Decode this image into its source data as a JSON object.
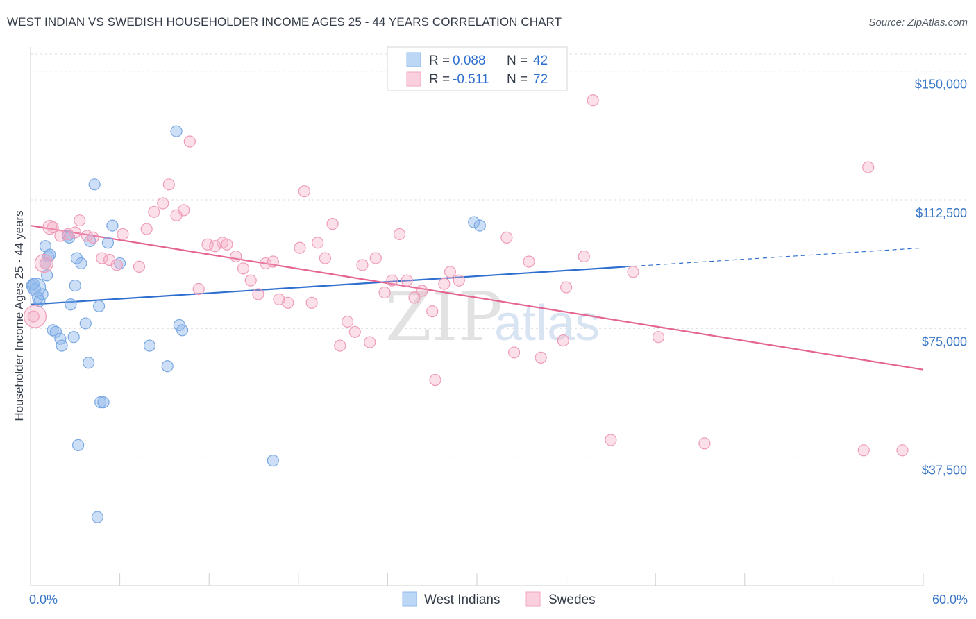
{
  "title": "WEST INDIAN VS SWEDISH HOUSEHOLDER INCOME AGES 25 - 44 YEARS CORRELATION CHART",
  "source": "Source: ZipAtlas.com",
  "chart_data": {
    "type": "scatter",
    "ylabel": "Householder Income Ages 25 - 44 years",
    "xlim": [
      0,
      60
    ],
    "ylim": [
      0,
      155000
    ],
    "y_ticks": [
      {
        "value": 37500,
        "label": "$37,500"
      },
      {
        "value": 75000,
        "label": "$75,000"
      },
      {
        "value": 112500,
        "label": "$112,500"
      },
      {
        "value": 150000,
        "label": "$150,000"
      }
    ],
    "x_tick_labels": {
      "min": "0.0%",
      "max": "60.0%"
    },
    "grid": true,
    "legend_position": "top-center",
    "colors": {
      "west_indians": "#8fb8ec",
      "swedes": "#f3a6bf",
      "west_indians_line": "#2f6fcf",
      "swedes_line": "#e46592",
      "tick_text": "#3b78c8"
    },
    "legend": [
      {
        "r_label": "R = ",
        "r_value": "0.088",
        "n_label": "N = ",
        "n_value": "42"
      },
      {
        "r_label": "R = ",
        "r_value": "-0.511",
        "n_label": "N = ",
        "n_value": "72"
      }
    ],
    "series": [
      {
        "name": "West Indians",
        "trend": {
          "x0": 0,
          "y0": 82000,
          "x1": 60,
          "y1": 98500,
          "solid_until_x": 40
        },
        "points": [
          [
            0.1,
            87500
          ],
          [
            0.3,
            86500
          ],
          [
            0.5,
            84000
          ],
          [
            0.6,
            83000
          ],
          [
            0.8,
            85000
          ],
          [
            1.0,
            99000
          ],
          [
            1.1,
            90500
          ],
          [
            1.2,
            96000
          ],
          [
            1.0,
            94000
          ],
          [
            1.5,
            74500
          ],
          [
            1.7,
            74000
          ],
          [
            2.0,
            72000
          ],
          [
            2.1,
            70000
          ],
          [
            2.5,
            102000
          ],
          [
            2.6,
            101500
          ],
          [
            2.7,
            82000
          ],
          [
            2.9,
            72500
          ],
          [
            3.0,
            87500
          ],
          [
            3.1,
            95500
          ],
          [
            3.4,
            94000
          ],
          [
            3.7,
            76500
          ],
          [
            3.9,
            65000
          ],
          [
            4.0,
            100500
          ],
          [
            4.3,
            117000
          ],
          [
            4.6,
            81500
          ],
          [
            4.7,
            53500
          ],
          [
            4.9,
            53500
          ],
          [
            5.2,
            100000
          ],
          [
            5.5,
            105000
          ],
          [
            6.0,
            94000
          ],
          [
            8.0,
            70000
          ],
          [
            9.2,
            64000
          ],
          [
            9.8,
            132500
          ],
          [
            10.0,
            76000
          ],
          [
            10.2,
            74500
          ],
          [
            16.3,
            36500
          ],
          [
            29.8,
            106000
          ],
          [
            30.2,
            105000
          ],
          [
            4.5,
            20000
          ],
          [
            3.2,
            41000
          ],
          [
            0.2,
            88000
          ],
          [
            1.3,
            96500
          ]
        ]
      },
      {
        "name": "Swedes",
        "trend": {
          "x0": 0,
          "y0": 105000,
          "x1": 60,
          "y1": 63000
        },
        "points": [
          [
            0.2,
            78500
          ],
          [
            1.0,
            94000
          ],
          [
            1.5,
            104500
          ],
          [
            2.0,
            102000
          ],
          [
            2.5,
            102500
          ],
          [
            3.0,
            103000
          ],
          [
            3.3,
            106500
          ],
          [
            3.8,
            102000
          ],
          [
            4.2,
            101500
          ],
          [
            4.8,
            95500
          ],
          [
            5.3,
            95000
          ],
          [
            5.8,
            93500
          ],
          [
            6.2,
            102500
          ],
          [
            7.3,
            93000
          ],
          [
            7.8,
            104000
          ],
          [
            8.3,
            109000
          ],
          [
            8.9,
            111500
          ],
          [
            9.3,
            117000
          ],
          [
            9.8,
            108000
          ],
          [
            10.3,
            109500
          ],
          [
            10.7,
            129500
          ],
          [
            11.3,
            86500
          ],
          [
            11.9,
            99500
          ],
          [
            12.4,
            99000
          ],
          [
            12.9,
            100000
          ],
          [
            13.2,
            99500
          ],
          [
            13.8,
            96000
          ],
          [
            14.3,
            92500
          ],
          [
            14.8,
            89000
          ],
          [
            15.3,
            85000
          ],
          [
            15.8,
            94000
          ],
          [
            16.3,
            94500
          ],
          [
            16.7,
            83500
          ],
          [
            17.3,
            82500
          ],
          [
            18.1,
            98500
          ],
          [
            18.4,
            115000
          ],
          [
            18.9,
            82500
          ],
          [
            19.3,
            100000
          ],
          [
            19.8,
            95500
          ],
          [
            20.3,
            105500
          ],
          [
            20.8,
            70000
          ],
          [
            21.3,
            77000
          ],
          [
            21.8,
            74000
          ],
          [
            22.3,
            93500
          ],
          [
            22.8,
            71000
          ],
          [
            23.2,
            95500
          ],
          [
            23.8,
            85500
          ],
          [
            24.3,
            89000
          ],
          [
            24.8,
            102500
          ],
          [
            25.3,
            89000
          ],
          [
            25.8,
            84000
          ],
          [
            26.3,
            86000
          ],
          [
            27.0,
            80000
          ],
          [
            27.2,
            60000
          ],
          [
            27.8,
            88000
          ],
          [
            28.2,
            91500
          ],
          [
            28.8,
            89000
          ],
          [
            32.0,
            101500
          ],
          [
            32.5,
            68000
          ],
          [
            33.5,
            94500
          ],
          [
            34.3,
            66500
          ],
          [
            35.8,
            71500
          ],
          [
            36.0,
            87000
          ],
          [
            37.2,
            96000
          ],
          [
            37.8,
            141500
          ],
          [
            39.0,
            42500
          ],
          [
            40.5,
            91500
          ],
          [
            42.2,
            72500
          ],
          [
            45.3,
            41500
          ],
          [
            56.3,
            122000
          ],
          [
            56.0,
            39500
          ],
          [
            58.6,
            39500
          ]
        ]
      }
    ]
  }
}
